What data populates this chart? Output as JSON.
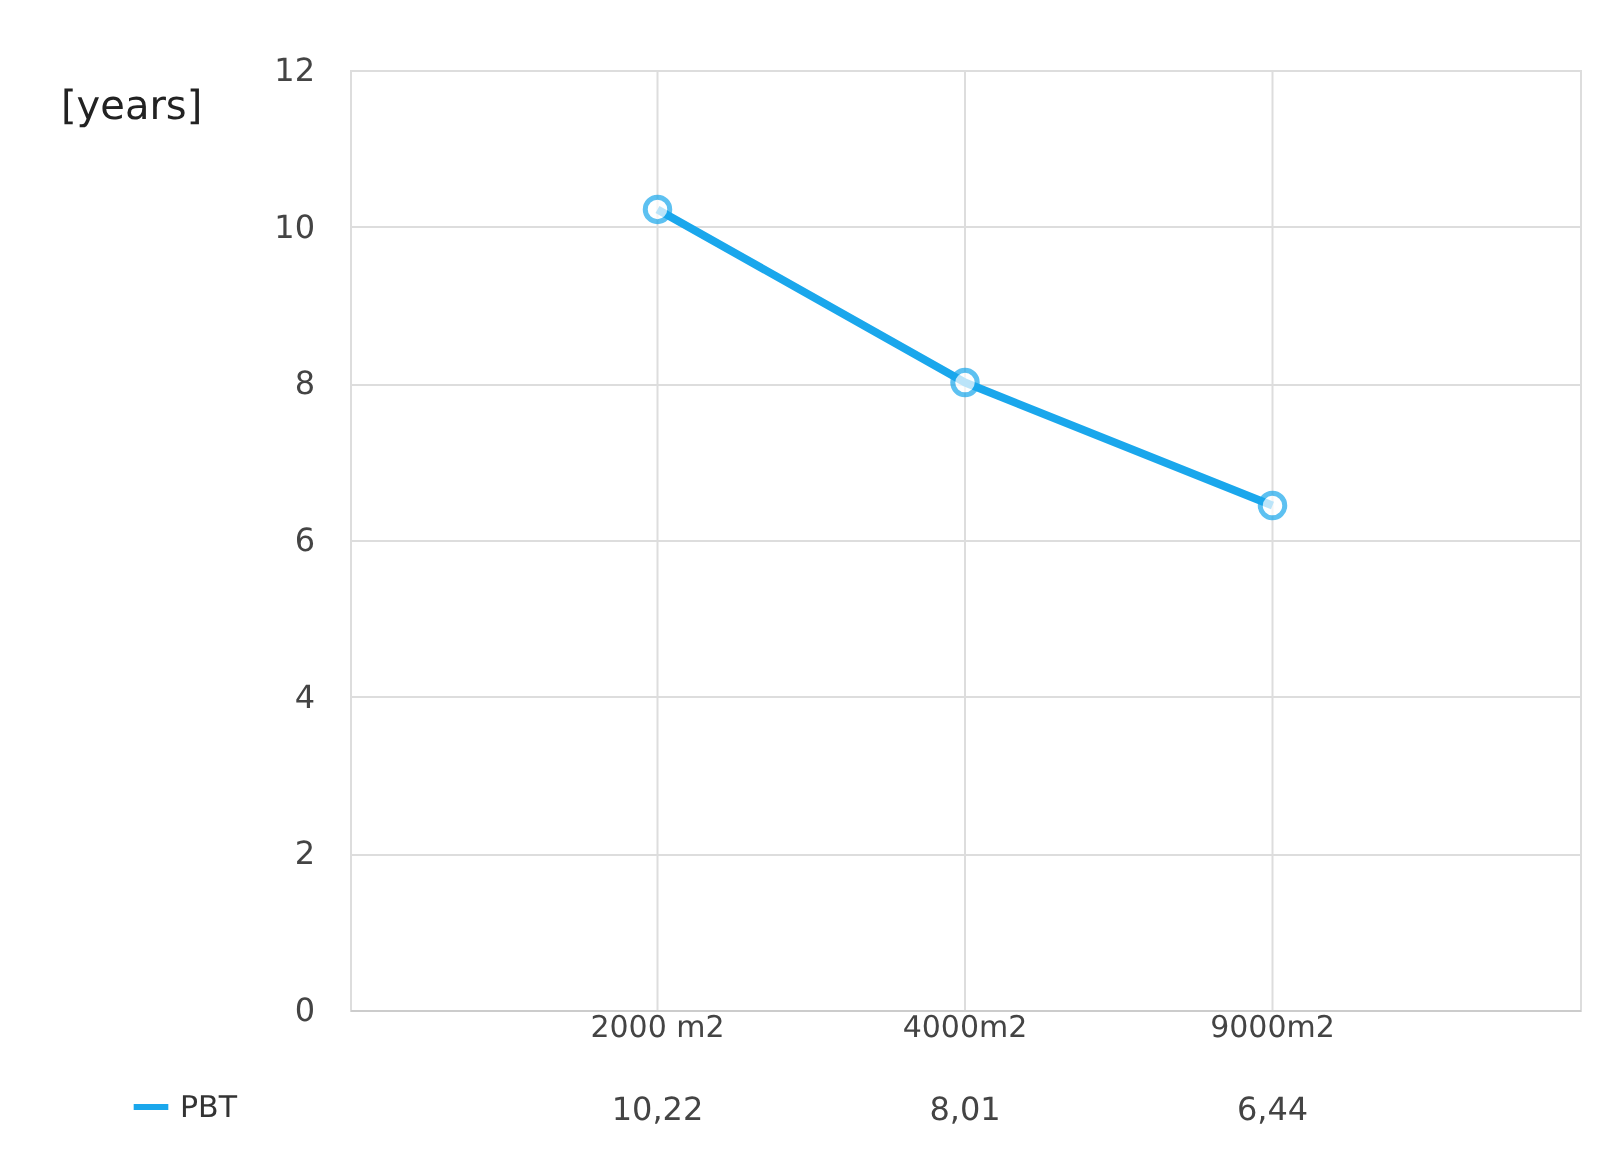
{
  "chart_data": {
    "type": "line",
    "ylabel": "[years]",
    "categories": [
      "2000 m2",
      "4000m2",
      "9000m2"
    ],
    "series": [
      {
        "name": "PBT",
        "color": "#1aa7ec",
        "values": [
          10.22,
          8.01,
          6.44
        ],
        "value_labels": [
          "10,22",
          "8,01",
          "6,44"
        ]
      }
    ],
    "ylim": [
      0,
      12
    ],
    "yticks": [
      0,
      2,
      4,
      6,
      8,
      10,
      12
    ],
    "grid": true,
    "legend": "bottom left",
    "marker": "circle",
    "line_style": "solid"
  }
}
